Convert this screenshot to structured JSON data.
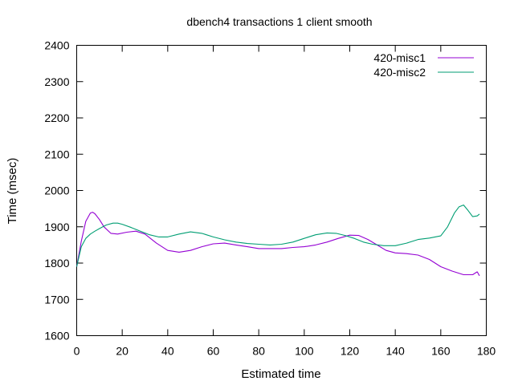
{
  "chart_data": {
    "type": "line",
    "title": "dbench4 transactions 1 client smooth",
    "xlabel": "Estimated time",
    "ylabel": "Time (msec)",
    "xlim": [
      0,
      180
    ],
    "ylim": [
      1600,
      2400
    ],
    "xticks": [
      0,
      20,
      40,
      60,
      80,
      100,
      120,
      140,
      160,
      180
    ],
    "yticks": [
      1600,
      1700,
      1800,
      1900,
      2000,
      2100,
      2200,
      2300,
      2400
    ],
    "grid": false,
    "legend_position": "top-right",
    "series": [
      {
        "name": "420-misc1",
        "color": "#9400d3",
        "x": [
          0,
          2,
          4,
          6,
          7,
          8,
          10,
          12,
          15,
          18,
          22,
          26,
          30,
          35,
          40,
          45,
          50,
          55,
          60,
          65,
          70,
          75,
          80,
          85,
          90,
          95,
          100,
          105,
          110,
          115,
          120,
          124,
          128,
          132,
          136,
          140,
          145,
          150,
          155,
          160,
          165,
          170,
          174,
          176,
          177
        ],
        "y": [
          1790,
          1860,
          1915,
          1938,
          1940,
          1936,
          1920,
          1900,
          1882,
          1880,
          1885,
          1888,
          1880,
          1855,
          1835,
          1830,
          1835,
          1845,
          1853,
          1855,
          1850,
          1845,
          1840,
          1840,
          1840,
          1843,
          1845,
          1850,
          1858,
          1868,
          1877,
          1876,
          1865,
          1850,
          1835,
          1828,
          1826,
          1822,
          1810,
          1790,
          1778,
          1768,
          1768,
          1776,
          1765
        ]
      },
      {
        "name": "420-misc2",
        "color": "#009e73",
        "x": [
          0,
          2,
          4,
          6,
          8,
          10,
          13,
          16,
          18,
          20,
          24,
          28,
          32,
          36,
          40,
          45,
          50,
          55,
          60,
          65,
          70,
          75,
          80,
          85,
          90,
          95,
          100,
          105,
          110,
          114,
          118,
          122,
          126,
          130,
          135,
          140,
          145,
          150,
          155,
          160,
          163,
          166,
          168,
          170,
          172,
          174,
          176,
          177
        ],
        "y": [
          1790,
          1845,
          1868,
          1880,
          1888,
          1895,
          1905,
          1910,
          1910,
          1907,
          1898,
          1888,
          1878,
          1872,
          1872,
          1880,
          1886,
          1882,
          1872,
          1864,
          1858,
          1854,
          1852,
          1850,
          1852,
          1858,
          1868,
          1878,
          1883,
          1882,
          1876,
          1868,
          1858,
          1852,
          1848,
          1848,
          1855,
          1865,
          1869,
          1875,
          1900,
          1938,
          1955,
          1960,
          1945,
          1928,
          1930,
          1935
        ]
      }
    ]
  }
}
